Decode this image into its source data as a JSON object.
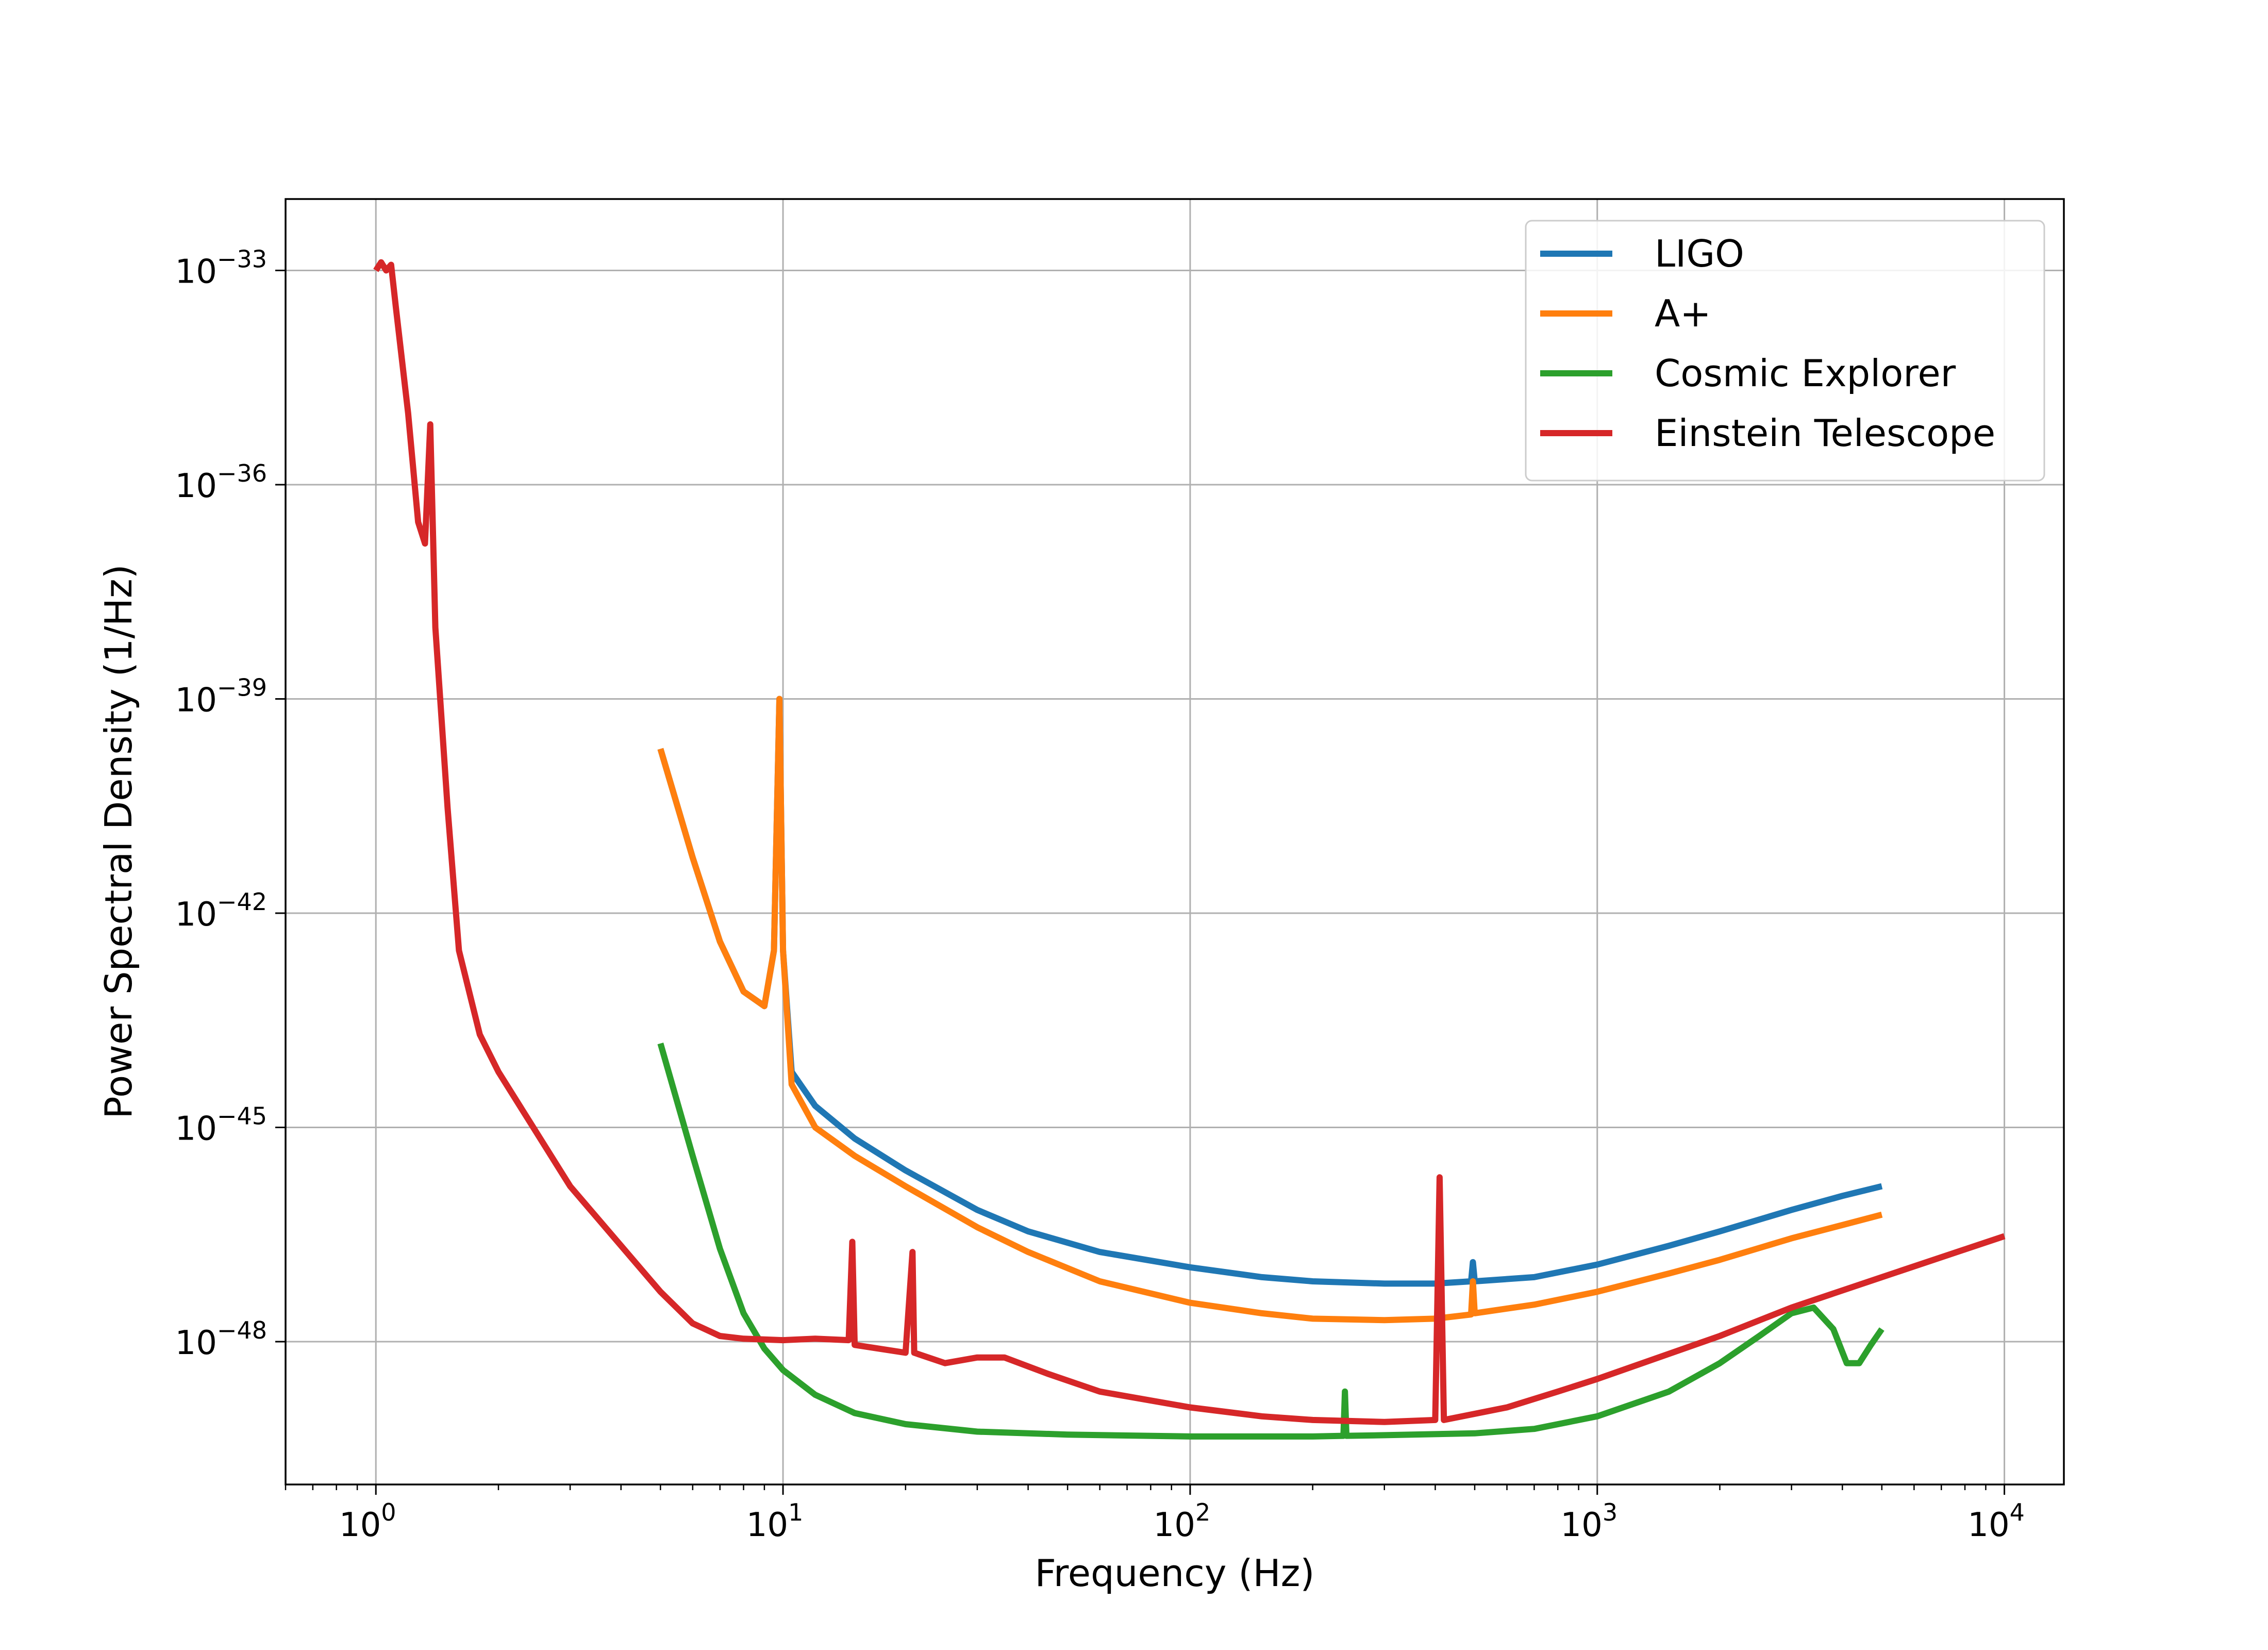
{
  "chart_data": {
    "type": "line",
    "xlabel": "Frequency (Hz)",
    "ylabel": "Power Spectral Density  (1/Hz)",
    "x_scale": "log",
    "y_scale": "log",
    "xlim": [
      0.6,
      14000
    ],
    "ylim": [
      1e-50,
      1e-32
    ],
    "x_ticks": [
      {
        "base": "10",
        "exp": "0",
        "value": 1
      },
      {
        "base": "10",
        "exp": "1",
        "value": 10
      },
      {
        "base": "10",
        "exp": "2",
        "value": 100
      },
      {
        "base": "10",
        "exp": "3",
        "value": 1000
      },
      {
        "base": "10",
        "exp": "4",
        "value": 10000
      }
    ],
    "y_ticks": [
      {
        "base": "10",
        "exp": "−33",
        "value": 1e-33
      },
      {
        "base": "10",
        "exp": "−36",
        "value": 1e-36
      },
      {
        "base": "10",
        "exp": "−39",
        "value": 1e-39
      },
      {
        "base": "10",
        "exp": "−42",
        "value": 1e-42
      },
      {
        "base": "10",
        "exp": "−45",
        "value": 1e-45
      },
      {
        "base": "10",
        "exp": "−48",
        "value": 1e-48
      }
    ],
    "grid": true,
    "legend_position": "upper-right",
    "series": [
      {
        "name": "LIGO",
        "color": "#1f77b4",
        "points": [
          [
            5,
            2e-40
          ],
          [
            6,
            6e-42
          ],
          [
            7,
            4e-43
          ],
          [
            8,
            8e-44
          ],
          [
            9,
            5e-44
          ],
          [
            9.5,
            3e-43
          ],
          [
            9.8,
            1e-39
          ],
          [
            10,
            3e-43
          ],
          [
            10.5,
            6e-45
          ],
          [
            12,
            2e-45
          ],
          [
            15,
            7e-46
          ],
          [
            20,
            2.5e-46
          ],
          [
            30,
            7e-47
          ],
          [
            40,
            3.5e-47
          ],
          [
            60,
            1.8e-47
          ],
          [
            100,
            1.1e-47
          ],
          [
            150,
            8e-48
          ],
          [
            200,
            7e-48
          ],
          [
            300,
            6.5e-48
          ],
          [
            400,
            6.5e-48
          ],
          [
            490,
            7e-48
          ],
          [
            495,
            1.3e-47
          ],
          [
            500,
            7e-48
          ],
          [
            700,
            8e-48
          ],
          [
            1000,
            1.2e-47
          ],
          [
            1500,
            2.2e-47
          ],
          [
            2000,
            3.5e-47
          ],
          [
            3000,
            7e-47
          ],
          [
            4000,
            1.1e-46
          ],
          [
            5000,
            1.5e-46
          ]
        ]
      },
      {
        "name": "A+",
        "color": "#ff7f0e",
        "points": [
          [
            5,
            2e-40
          ],
          [
            6,
            6e-42
          ],
          [
            7,
            4e-43
          ],
          [
            8,
            8e-44
          ],
          [
            9,
            5e-44
          ],
          [
            9.5,
            3e-43
          ],
          [
            9.8,
            1e-39
          ],
          [
            10,
            3e-43
          ],
          [
            10.5,
            4e-45
          ],
          [
            12,
            1e-45
          ],
          [
            15,
            4e-46
          ],
          [
            20,
            1.5e-46
          ],
          [
            30,
            4e-47
          ],
          [
            40,
            1.8e-47
          ],
          [
            60,
            7e-48
          ],
          [
            100,
            3.5e-48
          ],
          [
            150,
            2.5e-48
          ],
          [
            200,
            2.1e-48
          ],
          [
            300,
            2e-48
          ],
          [
            400,
            2.1e-48
          ],
          [
            490,
            2.4e-48
          ],
          [
            495,
            7e-48
          ],
          [
            500,
            2.5e-48
          ],
          [
            700,
            3.3e-48
          ],
          [
            1000,
            5e-48
          ],
          [
            1500,
            9e-48
          ],
          [
            2000,
            1.4e-47
          ],
          [
            3000,
            2.8e-47
          ],
          [
            4000,
            4.3e-47
          ],
          [
            5000,
            6e-47
          ]
        ]
      },
      {
        "name": "Cosmic Explorer",
        "color": "#2ca02c",
        "points": [
          [
            5,
            1.5e-44
          ],
          [
            6,
            4e-46
          ],
          [
            7,
            2e-47
          ],
          [
            8,
            2.5e-48
          ],
          [
            9,
            8e-49
          ],
          [
            10,
            4e-49
          ],
          [
            12,
            1.8e-49
          ],
          [
            15,
            1e-49
          ],
          [
            20,
            7e-50
          ],
          [
            30,
            5.5e-50
          ],
          [
            50,
            5e-50
          ],
          [
            100,
            4.7e-50
          ],
          [
            200,
            4.7e-50
          ],
          [
            238,
            4.8e-50
          ],
          [
            240,
            2e-49
          ],
          [
            242,
            4.8e-50
          ],
          [
            300,
            4.9e-50
          ],
          [
            500,
            5.2e-50
          ],
          [
            700,
            6e-50
          ],
          [
            1000,
            9e-50
          ],
          [
            1500,
            2e-49
          ],
          [
            2000,
            5e-49
          ],
          [
            2500,
            1.2e-48
          ],
          [
            3000,
            2.5e-48
          ],
          [
            3400,
            3e-48
          ],
          [
            3800,
            1.5e-48
          ],
          [
            4100,
            5e-49
          ],
          [
            4400,
            5e-49
          ],
          [
            4700,
            9e-49
          ],
          [
            5000,
            1.5e-48
          ]
        ]
      },
      {
        "name": "Einstein Telescope",
        "color": "#d62728",
        "points": [
          [
            1,
            1e-33
          ],
          [
            1.03,
            1.3e-33
          ],
          [
            1.06,
            1e-33
          ],
          [
            1.09,
            1.2e-33
          ],
          [
            1.12,
            3e-34
          ],
          [
            1.2,
            1e-35
          ],
          [
            1.27,
            3e-37
          ],
          [
            1.32,
            1.5e-37
          ],
          [
            1.36,
            7e-36
          ],
          [
            1.4,
            1e-38
          ],
          [
            1.5,
            3e-41
          ],
          [
            1.6,
            3e-43
          ],
          [
            1.8,
            2e-44
          ],
          [
            2,
            6e-45
          ],
          [
            3,
            1.5e-46
          ],
          [
            5,
            5e-48
          ],
          [
            6,
            1.8e-48
          ],
          [
            7,
            1.2e-48
          ],
          [
            8,
            1.1e-48
          ],
          [
            10,
            1.05e-48
          ],
          [
            12,
            1.1e-48
          ],
          [
            14.5,
            1.05e-48
          ],
          [
            14.8,
            2.5e-47
          ],
          [
            15,
            9e-49
          ],
          [
            20,
            7e-49
          ],
          [
            20.8,
            1.8e-47
          ],
          [
            21,
            7e-49
          ],
          [
            25,
            5e-49
          ],
          [
            30,
            6e-49
          ],
          [
            35,
            6e-49
          ],
          [
            45,
            3.5e-49
          ],
          [
            60,
            2e-49
          ],
          [
            100,
            1.2e-49
          ],
          [
            150,
            9e-50
          ],
          [
            200,
            8e-50
          ],
          [
            300,
            7.5e-50
          ],
          [
            400,
            8e-50
          ],
          [
            410,
            2e-46
          ],
          [
            420,
            8e-50
          ],
          [
            600,
            1.2e-49
          ],
          [
            800,
            2e-49
          ],
          [
            1000,
            3e-49
          ],
          [
            2000,
            1.2e-48
          ],
          [
            3000,
            3e-48
          ],
          [
            5000,
            8e-48
          ],
          [
            10000,
            3e-47
          ]
        ]
      }
    ]
  }
}
